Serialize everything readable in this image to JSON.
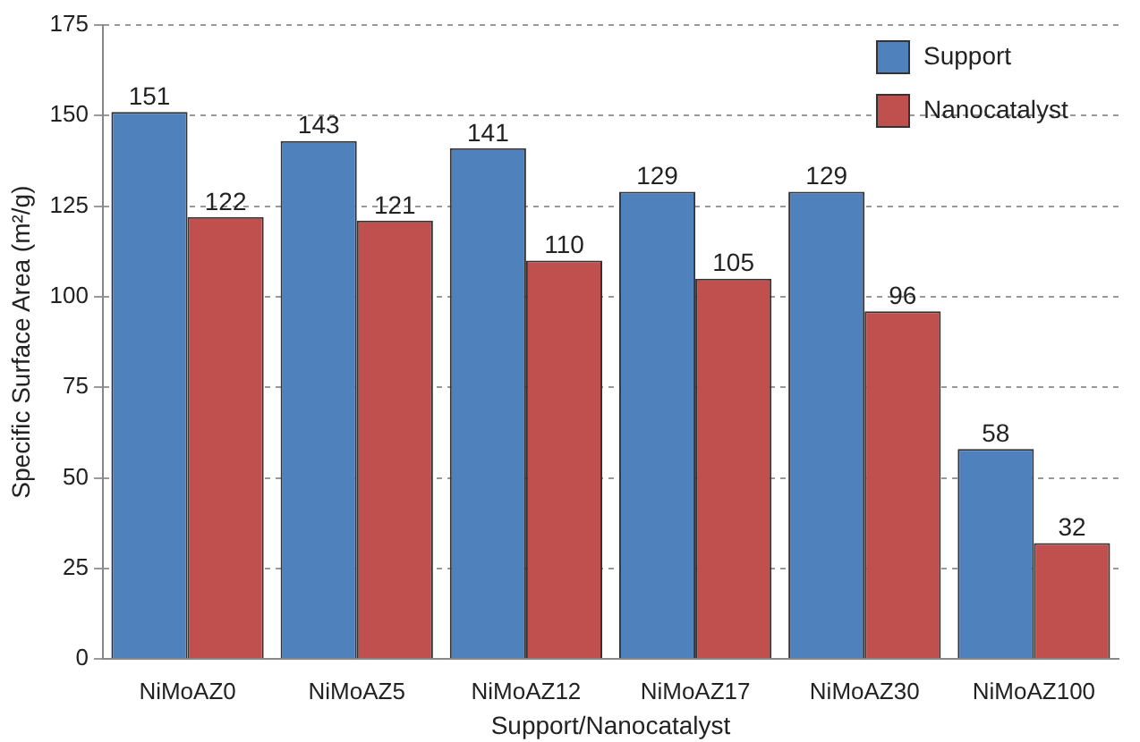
{
  "chart_data": {
    "type": "bar",
    "xlabel": "Support/Nanocatalyst",
    "ylabel": "Specific Surface Area (m²/g)",
    "categories": [
      "NiMoAZ0",
      "NiMoAZ5",
      "NiMoAZ12",
      "NiMoAZ17",
      "NiMoAZ30",
      "NiMoAZ100"
    ],
    "series": [
      {
        "name": "Support",
        "color": "#4f81bd",
        "values": [
          151,
          143,
          141,
          129,
          129,
          58
        ]
      },
      {
        "name": "Nanocatalyst",
        "color": "#c0504d",
        "values": [
          122,
          121,
          110,
          105,
          96,
          32
        ]
      }
    ],
    "ylim": [
      0,
      175
    ],
    "yticks": [
      0,
      25,
      50,
      75,
      100,
      125,
      150,
      175
    ],
    "grid": "y",
    "legend": "top right",
    "data_labels": true
  }
}
